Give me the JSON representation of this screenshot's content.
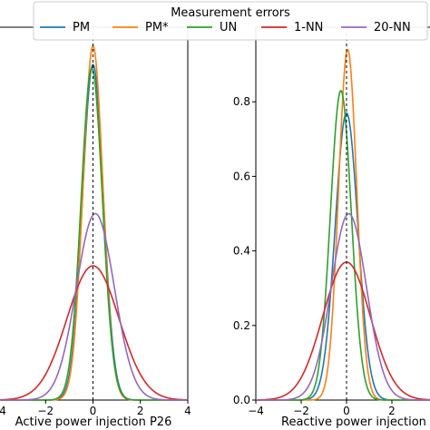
{
  "legend": {
    "title": "Measurement errors",
    "entries": [
      {
        "label": "PM",
        "color": "#1f77b4"
      },
      {
        "label": "PM*",
        "color": "#ff7f0e"
      },
      {
        "label": "UN",
        "color": "#2ca02c"
      },
      {
        "label": "1-NN",
        "color": "#d62728"
      },
      {
        "label": "20-NN",
        "color": "#9467bd"
      }
    ]
  },
  "chart_data": [
    {
      "type": "line",
      "xlabel": "Active power injection P26",
      "xlim": [
        -4,
        4
      ],
      "xticks": [
        -4,
        -2,
        0,
        2,
        4
      ],
      "xtick_labels": [
        "−4",
        "−2",
        "0",
        "2",
        "4"
      ],
      "ylim": [
        0,
        1.0
      ],
      "reference_line_x": 0,
      "series": [
        {
          "name": "PM",
          "color": "#1f77b4",
          "peak_x": 0.0,
          "peak_y": 0.9,
          "sigma": 0.44
        },
        {
          "name": "PM*",
          "color": "#ff7f0e",
          "peak_x": 0.0,
          "peak_y": 0.95,
          "sigma": 0.42
        },
        {
          "name": "UN",
          "color": "#2ca02c",
          "peak_x": -0.05,
          "peak_y": 0.89,
          "sigma": 0.45
        },
        {
          "name": "1-NN",
          "color": "#d62728",
          "peak_x": 0.0,
          "peak_y": 0.36,
          "sigma": 1.1
        },
        {
          "name": "20-NN",
          "color": "#9467bd",
          "peak_x": 0.1,
          "peak_y": 0.5,
          "sigma": 0.8
        }
      ]
    },
    {
      "type": "line",
      "xlabel": "Reactive power injection",
      "xlim": [
        -4,
        4
      ],
      "xticks": [
        -4,
        -2,
        0,
        2
      ],
      "xtick_labels": [
        "−4",
        "−2",
        "0",
        "2"
      ],
      "ylim": [
        0,
        1.0
      ],
      "yticks": [
        0.0,
        0.2,
        0.4,
        0.6,
        0.8
      ],
      "ytick_labels": [
        "0.0",
        "0.2",
        "0.4",
        "0.6",
        "0.8"
      ],
      "reference_line_x": 0,
      "series": [
        {
          "name": "PM",
          "color": "#1f77b4",
          "peak_x": 0.0,
          "peak_y": 0.77,
          "sigma": 0.5
        },
        {
          "name": "PM*",
          "color": "#ff7f0e",
          "peak_x": 0.05,
          "peak_y": 0.94,
          "sigma": 0.4
        },
        {
          "name": "UN",
          "color": "#2ca02c",
          "peak_x": -0.25,
          "peak_y": 0.83,
          "sigma": 0.46
        },
        {
          "name": "1-NN",
          "color": "#d62728",
          "peak_x": 0.0,
          "peak_y": 0.37,
          "sigma": 1.05
        },
        {
          "name": "20-NN",
          "color": "#9467bd",
          "peak_x": 0.1,
          "peak_y": 0.5,
          "sigma": 0.78
        }
      ]
    }
  ]
}
